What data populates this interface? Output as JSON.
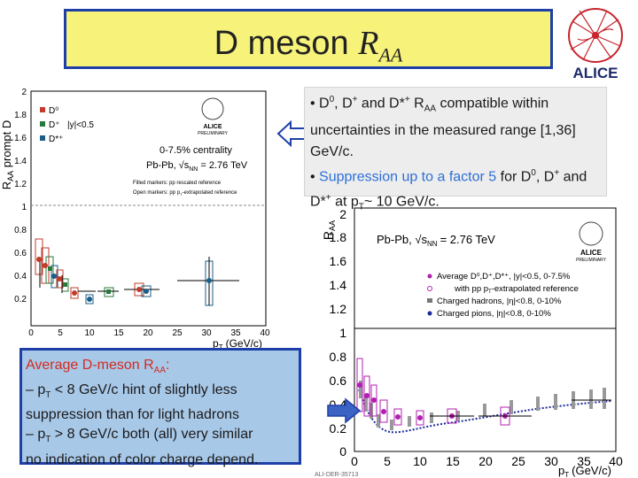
{
  "title": {
    "main": "D meson ",
    "sub_R": "R",
    "sub_AA": "AA"
  },
  "logo": {
    "text": "ALICE"
  },
  "plot1": {
    "ylabel": "R",
    "ylabel_sub": "AA",
    "ylabel_tail": " prompt D",
    "yticks": [
      "2",
      "1.8",
      "1.6",
      "1.4",
      "1.2",
      "1",
      "0.8",
      "0.6",
      "0.4",
      "0.2"
    ],
    "xticks": [
      "0",
      "5",
      "10",
      "15",
      "20",
      "25",
      "30",
      "35",
      "40"
    ],
    "xlabel": "p",
    "xlabel_sub": "T",
    "xlabel_unit": "(GeV/c)",
    "legend": [
      "D⁰",
      "D⁺",
      "D*⁺"
    ],
    "rapidity": "|y|<0.5",
    "centrality": "0-7.5% centrality",
    "system": "Pb-Pb, √s",
    "system_sub": "NN",
    "energy": "= 2.76 TeV",
    "note1": "Filled markers: pp rescaled reference",
    "note2": "Open markers: pp p",
    "note2_sub": "T",
    "note2_tail": "-extrapolated reference",
    "preliminary": "PRELIMINARY",
    "alice": "ALICE",
    "colors": {
      "d0": "#c23b2a",
      "dplus": "#2a7a3b",
      "dstar": "#1a5e8a"
    }
  },
  "plot2": {
    "ylabel": "R",
    "ylabel_sub": "AA",
    "yticks": [
      "2",
      "1.8",
      "1.6",
      "1.4",
      "1.2",
      "1",
      "0.8",
      "0.6",
      "0.4",
      "0.2",
      "0"
    ],
    "xticks": [
      "0",
      "5",
      "10",
      "15",
      "20",
      "25",
      "30",
      "35",
      "40"
    ],
    "xlabel": "p",
    "xlabel_sub": "T",
    "xlabel_unit": "(GeV/c)",
    "system": "Pb-Pb, √s",
    "system_sub": "NN",
    "energy": "= 2.76 TeV",
    "legend": [
      "Average D⁰,D⁺,D*⁺, |y|<0.5, 0-7.5%",
      "with pp p",
      "Charged hadrons, |η|<0.8, 0-10%",
      "Charged pions, |η|<0.8, 0-10%"
    ],
    "legend2_tail": "-extrapolated reference",
    "footer": "ALI-DER-35713",
    "preliminary": "PRELIMINARY",
    "alice": "ALICE"
  },
  "box_top": {
    "bullet1_a": "• D",
    "bullet1_sup0": "0",
    "bullet1_b": ", D",
    "bullet1_supp": "+",
    "bullet1_c": " and D*",
    "bullet1_supstar": "+",
    "bullet1_d": " R",
    "bullet1_sub": "AA",
    "bullet1_e": " compatible within uncertainties in the measured  range [1,36] GeV/c.",
    "bullet2_a": "• ",
    "bullet2_blue": "Suppression up to a factor 5",
    "bullet2_b": " for D",
    "bullet2_sup0": "0",
    "bullet2_c": ", D",
    "bullet2_supp": "+",
    "bullet2_d": " and D*",
    "bullet2_supstar": "+",
    "bullet2_e": " at   p",
    "bullet2_sub": "T",
    "bullet2_f": "~ 10 GeV/c."
  },
  "box_bottom": {
    "line1_a": "Average D-meson R",
    "line1_sub": "AA",
    "line1_b": ":",
    "line2_a": "– p",
    "line2_sub": "T",
    "line2_b": " < 8 GeV/c hint of slightly less suppression than for light hadrons",
    "line3_a": "– p",
    "line3_sub": "T",
    "line3_b": " > 8 GeV/c both (all) very similar",
    "line4": "no indication of color charge depend."
  }
}
